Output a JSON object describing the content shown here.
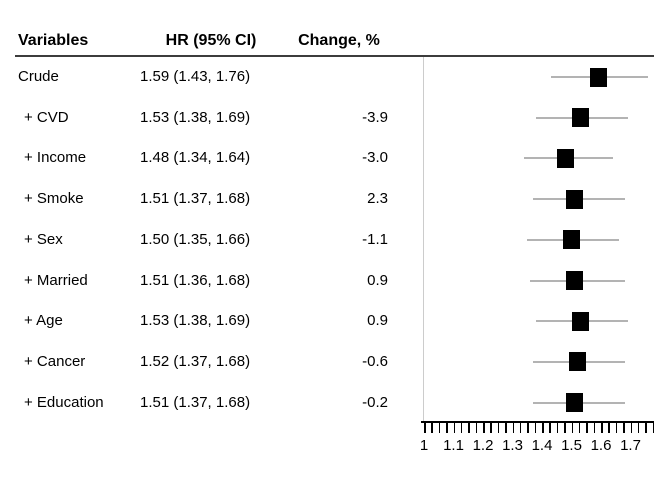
{
  "chart_data": {
    "type": "forest",
    "title": "",
    "columns": [
      "Variables",
      "HR (95% CI)",
      "Change, %"
    ],
    "rows": [
      {
        "variable": "Crude",
        "hr_ci": "1.59 (1.43, 1.76)",
        "change": "",
        "hr": 1.59,
        "lo": 1.43,
        "hi": 1.76
      },
      {
        "variable": "+ CVD",
        "hr_ci": "1.53 (1.38, 1.69)",
        "change": "-3.9",
        "hr": 1.53,
        "lo": 1.38,
        "hi": 1.69
      },
      {
        "variable": "+ Income",
        "hr_ci": "1.48 (1.34, 1.64)",
        "change": "-3.0",
        "hr": 1.48,
        "lo": 1.34,
        "hi": 1.64
      },
      {
        "variable": "+ Smoke",
        "hr_ci": "1.51 (1.37, 1.68)",
        "change": "2.3",
        "hr": 1.51,
        "lo": 1.37,
        "hi": 1.68
      },
      {
        "variable": "+ Sex",
        "hr_ci": "1.50 (1.35, 1.66)",
        "change": "-1.1",
        "hr": 1.5,
        "lo": 1.35,
        "hi": 1.66
      },
      {
        "variable": "+ Married",
        "hr_ci": "1.51 (1.36, 1.68)",
        "change": "0.9",
        "hr": 1.51,
        "lo": 1.36,
        "hi": 1.68
      },
      {
        "variable": "+ Age",
        "hr_ci": "1.53 (1.38, 1.69)",
        "change": "0.9",
        "hr": 1.53,
        "lo": 1.38,
        "hi": 1.69
      },
      {
        "variable": "+ Cancer",
        "hr_ci": "1.52 (1.37, 1.68)",
        "change": "-0.6",
        "hr": 1.52,
        "lo": 1.37,
        "hi": 1.68
      },
      {
        "variable": "+ Education",
        "hr_ci": "1.51 (1.37, 1.68)",
        "change": "-0.2",
        "hr": 1.51,
        "lo": 1.37,
        "hi": 1.68
      }
    ],
    "axis": {
      "min": 1.0,
      "max": 1.775,
      "minor_tick_step": 0.025,
      "label_step": 0.1,
      "tick_labels": [
        "1",
        "1.1",
        "1.2",
        "1.3",
        "1.4",
        "1.5",
        "1.6",
        "1.7"
      ],
      "reference_value": 1.0
    },
    "legend": null,
    "grid": false,
    "colors": {
      "marker": "#000000",
      "ci_line": "#b3b3b3",
      "reference_line": "#cccccc",
      "axis": "#000000",
      "header_rule": "#3c3c3c",
      "text": "#000000",
      "background": "#ffffff"
    }
  }
}
